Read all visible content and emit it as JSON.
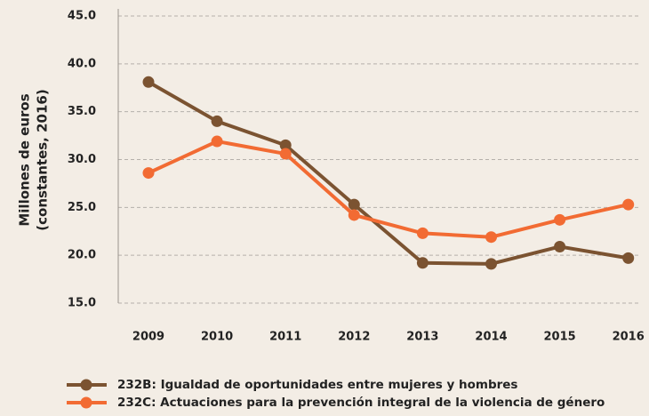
{
  "chart_data": {
    "type": "line",
    "ylabel": [
      "Millones de euros",
      "(constantes, 2016)"
    ],
    "categories": [
      "2009",
      "2010",
      "2011",
      "2012",
      "2013",
      "2014",
      "2015",
      "2016"
    ],
    "series": [
      {
        "name": "232B: Igualdad de oportunidades entre mujeres y hombres",
        "color": "#7b5331",
        "values": [
          38.1,
          34.0,
          31.5,
          25.3,
          19.2,
          19.1,
          20.9,
          19.7
        ]
      },
      {
        "name": "232C: Actuaciones para la prevención integral de la violencia de género",
        "color": "#f26b33",
        "values": [
          28.6,
          31.9,
          30.6,
          24.2,
          22.3,
          21.9,
          23.7,
          25.3
        ]
      }
    ],
    "ylim": [
      15,
      45
    ],
    "yticks": [
      {
        "value": 15,
        "label": "15.0"
      },
      {
        "value": 20,
        "label": "20.0"
      },
      {
        "value": 25,
        "label": "25.0"
      },
      {
        "value": 30,
        "label": "30.0"
      },
      {
        "value": 35,
        "label": "35.0"
      },
      {
        "value": 40,
        "label": "40.0"
      },
      {
        "value": 45,
        "label": "45.0"
      }
    ],
    "grid": true,
    "legend": "bottom"
  }
}
